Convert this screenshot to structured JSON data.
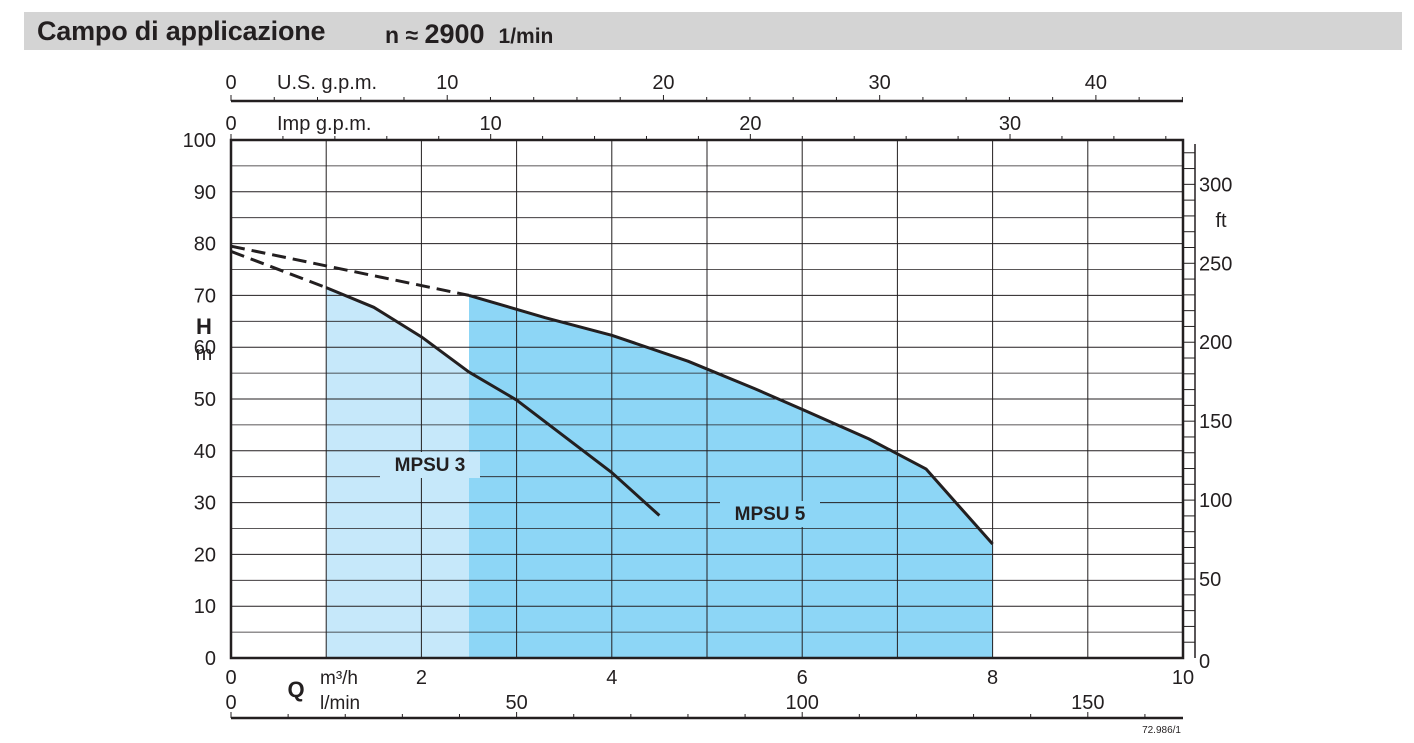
{
  "header": {
    "title": "Campo di applicazione",
    "speed_symbol": "n ≈",
    "speed_value": "2900",
    "speed_unit": "1/min"
  },
  "chart_data": {
    "type": "area",
    "title": "Campo di applicazione n ≈ 2900 1/min",
    "x_primary": {
      "label": "Q",
      "unit": "m³/h",
      "range": [
        0,
        10
      ],
      "ticks": [
        0,
        2,
        4,
        6,
        8,
        10
      ]
    },
    "x_secondary_bottom": {
      "unit": "l/min",
      "ticks": [
        0,
        50,
        100,
        150
      ]
    },
    "x_top_1": {
      "unit": "U.S. g.p.m.",
      "ticks": [
        0,
        10,
        20,
        30,
        40
      ]
    },
    "x_top_2": {
      "unit": "Imp g.p.m.",
      "ticks": [
        0,
        10,
        20,
        30
      ]
    },
    "y_left": {
      "label": "H",
      "unit": "m",
      "range": [
        0,
        100
      ],
      "ticks": [
        0,
        10,
        20,
        30,
        40,
        50,
        60,
        70,
        80,
        90,
        100
      ]
    },
    "y_right": {
      "unit": "ft",
      "ticks": [
        0,
        50,
        100,
        150,
        200,
        250,
        300
      ]
    },
    "grid": true,
    "series": [
      {
        "name": "MPSU 3",
        "color": "#c6e8fa",
        "q_min": 1.0,
        "q_max": 4.5,
        "dashed": [
          [
            0,
            78.5
          ],
          [
            1.0,
            71.5
          ]
        ],
        "curve": [
          [
            1.0,
            71.5
          ],
          [
            1.5,
            67.7
          ],
          [
            2.0,
            62
          ],
          [
            2.5,
            55.2
          ],
          [
            3.0,
            49.8
          ],
          [
            3.5,
            42.8
          ],
          [
            4.0,
            35.8
          ],
          [
            4.5,
            27.5
          ]
        ]
      },
      {
        "name": "MPSU 5",
        "color": "#8dd6f6",
        "q_min": 2.5,
        "q_max": 8.0,
        "dashed": [
          [
            0,
            79.5
          ],
          [
            2.5,
            70
          ]
        ],
        "curve": [
          [
            2.5,
            70
          ],
          [
            3.3,
            65.7
          ],
          [
            4.0,
            62.3
          ],
          [
            4.8,
            57.3
          ],
          [
            5.5,
            52
          ],
          [
            6.0,
            48
          ],
          [
            6.7,
            42.3
          ],
          [
            7.3,
            36.5
          ],
          [
            8.0,
            22
          ]
        ]
      }
    ],
    "annotation": "72.986/1"
  }
}
